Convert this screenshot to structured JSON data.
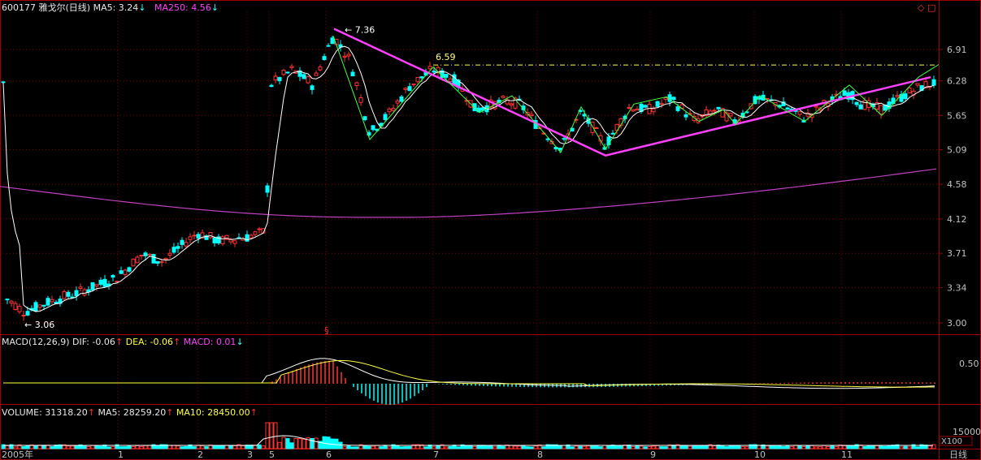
{
  "header": {
    "code": "600177",
    "name": "雅戈尔(日线)",
    "ma5_label": "MA5: 3.24",
    "ma250_label": "MA250: 4.56"
  },
  "macd_header": {
    "label": "MACD(12,26,9)",
    "dif": "DIF: -0.06",
    "dea": "DEA: -0.06",
    "macd": "MACD: 0.01"
  },
  "volume_header": {
    "volume": "VOLUME: 31318.20",
    "ma5": "MA5: 28259.20",
    "ma10": "MA10: 28450.00"
  },
  "price_axis": [
    "6.91",
    "6.28",
    "5.65",
    "5.09",
    "4.58",
    "4.12",
    "3.71",
    "3.34",
    "3.00"
  ],
  "macd_axis": [
    "0.50"
  ],
  "volume_axis": [
    "15000"
  ],
  "volume_unit": "X100",
  "period_label": "日线",
  "annotations": {
    "high": "7.36",
    "mid_high": "6.59",
    "low": "3.06",
    "marker": "§"
  },
  "colors": {
    "up": "#ff3232",
    "down": "#00ffff",
    "ma5": "#ffffff",
    "ma250": "#c040c0",
    "trend": "#ff40ff",
    "zigzag": "#40ff40",
    "dash": "#ffff40",
    "grid": "#800000"
  },
  "chart_data": {
    "type": "candlestick",
    "title": "600177 雅戈尔(日线)",
    "x_ticks": [
      "2005年",
      "1",
      "2",
      "3",
      "5",
      "6",
      "7",
      "8",
      "9",
      "10",
      "11"
    ],
    "y_scale": "log",
    "ylim": [
      2.9,
      7.6
    ],
    "price_keypoints": [
      {
        "month": "1",
        "close": 3.2
      },
      {
        "month": "2",
        "close": 3.95
      },
      {
        "month": "3",
        "close": 3.9
      },
      {
        "month": "5",
        "close": 6.3
      },
      {
        "month": "6",
        "close": 7.0
      },
      {
        "month": "7",
        "close": 6.5
      },
      {
        "month": "8",
        "close": 5.2
      },
      {
        "month": "9",
        "close": 5.8
      },
      {
        "month": "10",
        "close": 5.75
      },
      {
        "month": "11",
        "close": 6.0
      }
    ],
    "annotated_prices": {
      "high": 7.36,
      "second_high": 6.59,
      "low": 3.06
    },
    "ma250_range": [
      4.14,
      4.8
    ],
    "macd": {
      "dif": -0.06,
      "dea": -0.06,
      "macd": 0.01,
      "peak": 0.6
    },
    "volume": {
      "last": 31318.2,
      "ma5": 28259.2,
      "ma10": 28450.0
    }
  }
}
